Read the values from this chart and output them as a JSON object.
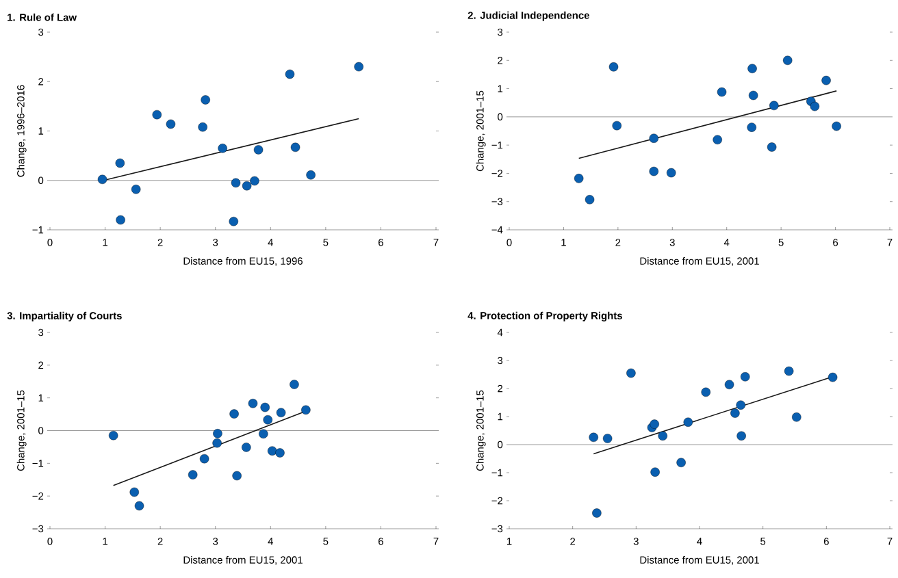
{
  "chart_data": [
    {
      "type": "scatter",
      "title": "1. Rule of Law",
      "xlabel": "Distance from EU15, 1996",
      "ylabel": "Change, 1996–2016",
      "xlim": [
        0,
        7
      ],
      "xticks": [
        0,
        1,
        2,
        3,
        4,
        5,
        6,
        7
      ],
      "ylim": [
        -1,
        3
      ],
      "yticks": [
        {
          "value": -1,
          "label": "−1"
        },
        0,
        1,
        2,
        3
      ],
      "grid": false,
      "ref_lines": [
        {
          "axis": "y",
          "value": 0,
          "color": "#808080"
        }
      ],
      "series": [
        {
          "marker": "circle",
          "color": "#0a5fb0",
          "x": [
            0.95,
            1.27,
            1.28,
            1.56,
            1.94,
            2.19,
            2.77,
            2.82,
            3.13,
            3.37,
            3.33,
            3.57,
            3.71,
            3.78,
            4.35,
            4.45,
            4.73,
            5.6
          ],
          "values": [
            0.02,
            0.35,
            -0.8,
            -0.18,
            1.33,
            1.14,
            1.08,
            1.63,
            0.65,
            -0.05,
            -0.83,
            -0.11,
            -0.01,
            0.62,
            2.15,
            0.67,
            0.11,
            2.3
          ]
        },
        {
          "type": "line",
          "color": "#1a1a1a",
          "x": [
            0.97,
            5.6
          ],
          "values": [
            0.0,
            1.25
          ]
        }
      ]
    },
    {
      "type": "scatter",
      "title": "2. Judicial Independence",
      "xlabel": "Distance from EU15, 2001",
      "ylabel": "Change, 2001–15",
      "xlim": [
        0,
        7
      ],
      "xticks": [
        0,
        1,
        2,
        3,
        4,
        5,
        6,
        7
      ],
      "ylim": [
        -4,
        3
      ],
      "yticks": [
        {
          "value": -4,
          "label": "−4"
        },
        {
          "value": -3,
          "label": "−3"
        },
        {
          "value": -2,
          "label": "−2"
        },
        {
          "value": -1,
          "label": "−1"
        },
        0,
        1,
        2,
        3
      ],
      "grid": false,
      "ref_lines": [
        {
          "axis": "y",
          "value": 0,
          "color": "#808080"
        }
      ],
      "series": [
        {
          "marker": "circle",
          "color": "#0a5fb0",
          "x": [
            1.28,
            1.48,
            1.92,
            1.98,
            2.66,
            2.66,
            2.98,
            3.83,
            3.91,
            4.46,
            4.47,
            4.49,
            4.83,
            4.87,
            5.12,
            5.55,
            5.62,
            5.83,
            6.02
          ],
          "values": [
            -2.18,
            -2.93,
            1.77,
            -0.31,
            -0.76,
            -1.93,
            -1.98,
            -0.81,
            0.88,
            -0.37,
            1.71,
            0.76,
            -1.07,
            0.4,
            2.0,
            0.55,
            0.37,
            1.29,
            -0.33
          ]
        },
        {
          "type": "line",
          "color": "#1a1a1a",
          "x": [
            1.28,
            6.02
          ],
          "values": [
            -1.47,
            0.92
          ]
        }
      ]
    },
    {
      "type": "scatter",
      "title": "3. Impartiality of Courts",
      "xlabel": "Distance from EU15, 2001",
      "ylabel": "Change, 2001–15",
      "xlim": [
        0,
        7
      ],
      "xticks": [
        0,
        1,
        2,
        3,
        4,
        5,
        6,
        7
      ],
      "ylim": [
        -3,
        3
      ],
      "yticks": [
        {
          "value": -3,
          "label": "−3"
        },
        {
          "value": -2,
          "label": "−2"
        },
        {
          "value": -1,
          "label": "−1"
        },
        0,
        1,
        2,
        3
      ],
      "grid": false,
      "ref_lines": [
        {
          "axis": "y",
          "value": 0,
          "color": "#808080"
        }
      ],
      "series": [
        {
          "marker": "circle",
          "color": "#0a5fb0",
          "x": [
            1.15,
            1.53,
            1.62,
            2.59,
            2.8,
            3.04,
            3.03,
            3.34,
            3.39,
            3.56,
            3.68,
            3.9,
            3.95,
            3.87,
            4.03,
            4.17,
            4.19,
            4.43,
            4.64
          ],
          "values": [
            -0.15,
            -1.88,
            -2.3,
            -1.35,
            -0.86,
            -0.09,
            -0.38,
            0.51,
            -1.38,
            -0.51,
            0.83,
            0.71,
            0.33,
            -0.1,
            -0.62,
            -0.68,
            0.55,
            1.41,
            0.63
          ]
        },
        {
          "type": "line",
          "color": "#1a1a1a",
          "x": [
            1.15,
            4.65
          ],
          "values": [
            -1.68,
            0.6
          ]
        }
      ]
    },
    {
      "type": "scatter",
      "title": "4. Protection of Property Rights",
      "xlabel": "Distance from EU15, 2001",
      "ylabel": "Change, 2001–15",
      "xlim": [
        1,
        7
      ],
      "xticks": [
        1,
        2,
        3,
        4,
        5,
        6,
        7
      ],
      "ylim": [
        -3,
        4
      ],
      "yticks": [
        {
          "value": -3,
          "label": "−3"
        },
        {
          "value": -2,
          "label": "−2"
        },
        {
          "value": -1,
          "label": "−1"
        },
        0,
        1,
        2,
        3,
        4
      ],
      "grid": false,
      "ref_lines": [
        {
          "axis": "y",
          "value": 0,
          "color": "#808080"
        }
      ],
      "series": [
        {
          "marker": "circle",
          "color": "#0a5fb0",
          "x": [
            2.33,
            2.55,
            2.38,
            2.92,
            3.25,
            3.29,
            3.3,
            3.42,
            3.71,
            3.82,
            4.1,
            4.47,
            4.56,
            4.65,
            4.66,
            4.72,
            5.41,
            5.53,
            6.1
          ],
          "values": [
            0.26,
            0.22,
            -2.44,
            2.55,
            0.61,
            0.73,
            -0.98,
            0.31,
            -0.64,
            0.8,
            1.87,
            2.14,
            1.12,
            1.41,
            0.31,
            2.42,
            2.62,
            0.98,
            2.4
          ]
        },
        {
          "type": "line",
          "color": "#1a1a1a",
          "x": [
            2.33,
            6.1
          ],
          "values": [
            -0.33,
            2.42
          ]
        }
      ]
    }
  ]
}
